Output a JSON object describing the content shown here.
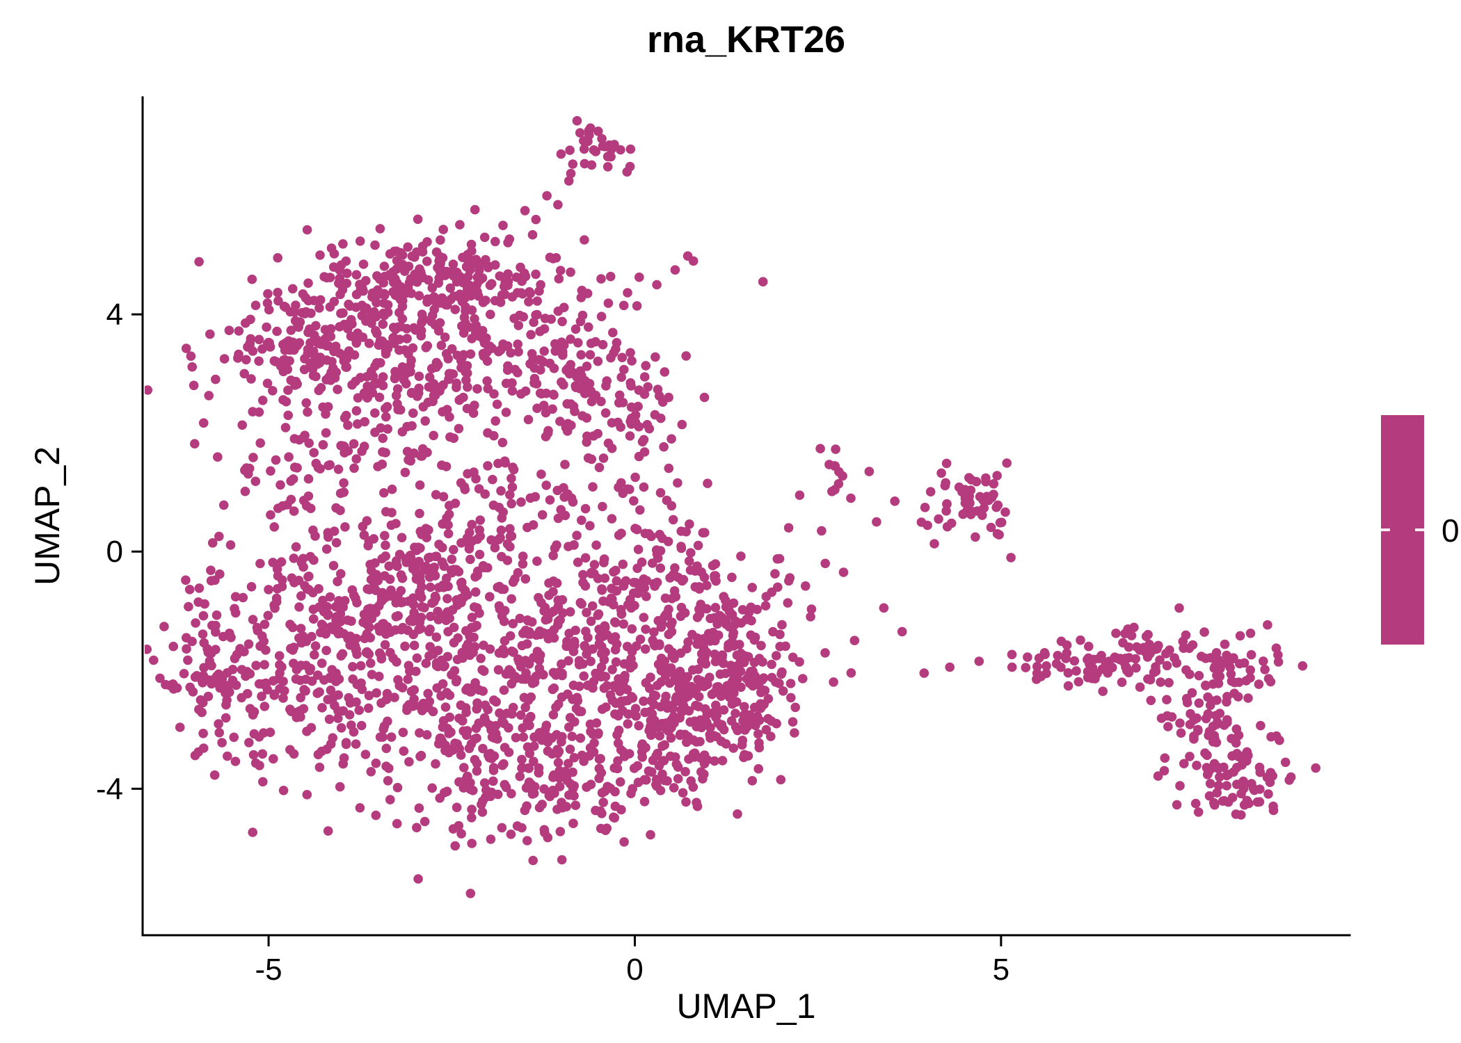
{
  "chart": {
    "title": "rna_KRT26",
    "xlabel": "UMAP_1",
    "ylabel": "UMAP_2"
  },
  "legend": {
    "label": "0"
  },
  "chart_data": {
    "type": "scatter",
    "title": "rna_KRT26",
    "xlabel": "UMAP_1",
    "ylabel": "UMAP_2",
    "xlim": [
      -6.72,
      9.76
    ],
    "ylim": [
      -6.47,
      7.66
    ],
    "x_ticks": [
      -5,
      0,
      5
    ],
    "y_ticks": [
      -4,
      0,
      4
    ],
    "grid": false,
    "legend_position": "right",
    "legend_value": "0",
    "point_color": "#B43B7D",
    "point_radius": 6.8,
    "axis_color": "#000000",
    "clusters": [
      {
        "name": "top-small",
        "cx": -0.5,
        "cy": 6.75,
        "sx": 0.22,
        "sy": 0.26,
        "n": 30
      },
      {
        "name": "upper-blob-core",
        "cx": -2.9,
        "cy": 4.5,
        "sx": 0.85,
        "sy": 0.45,
        "n": 250
      },
      {
        "name": "upper-blob-left",
        "cx": -4.35,
        "cy": 3.45,
        "sx": 0.75,
        "sy": 0.5,
        "n": 170
      },
      {
        "name": "upper-blob-lower",
        "cx": -2.7,
        "cy": 3.1,
        "sx": 1.0,
        "sy": 0.5,
        "n": 190
      },
      {
        "name": "upper-blob-right",
        "cx": -1.0,
        "cy": 3.4,
        "sx": 0.65,
        "sy": 0.75,
        "n": 110
      },
      {
        "name": "neck",
        "cx": -0.15,
        "cy": 2.2,
        "sx": 0.45,
        "sy": 0.5,
        "n": 55
      },
      {
        "name": "mid-band",
        "cx": -1.3,
        "cy": 0.9,
        "sx": 1.1,
        "sy": 0.45,
        "n": 65
      },
      {
        "name": "mid-left",
        "cx": -4.7,
        "cy": 1.4,
        "sx": 0.6,
        "sy": 0.5,
        "n": 50
      },
      {
        "name": "mid-center",
        "cx": -3.0,
        "cy": 1.6,
        "sx": 0.7,
        "sy": 0.4,
        "n": 50
      },
      {
        "name": "lower-upper-left",
        "cx": -3.0,
        "cy": -0.5,
        "sx": 1.0,
        "sy": 0.75,
        "n": 250
      },
      {
        "name": "lower-left",
        "cx": -4.6,
        "cy": -1.8,
        "sx": 0.85,
        "sy": 1.0,
        "n": 260
      },
      {
        "name": "far-left-edge",
        "cx": -5.75,
        "cy": -2.2,
        "sx": 0.35,
        "sy": 0.7,
        "n": 55
      },
      {
        "name": "lower-core",
        "cx": -2.4,
        "cy": -2.4,
        "sx": 1.05,
        "sy": 0.95,
        "n": 290
      },
      {
        "name": "bottom-lobe",
        "cx": -1.2,
        "cy": -3.9,
        "sx": 0.95,
        "sy": 0.6,
        "n": 190
      },
      {
        "name": "lower-mid",
        "cx": -0.5,
        "cy": -1.5,
        "sx": 0.8,
        "sy": 0.9,
        "n": 170
      },
      {
        "name": "lower-neck",
        "cx": 0.3,
        "cy": -0.3,
        "sx": 0.55,
        "sy": 0.5,
        "n": 80
      },
      {
        "name": "lower-right",
        "cx": 0.6,
        "cy": -2.3,
        "sx": 0.75,
        "sy": 0.8,
        "n": 180
      },
      {
        "name": "lower-right-bottom",
        "cx": 0.9,
        "cy": -3.1,
        "sx": 0.5,
        "sy": 0.4,
        "n": 70
      },
      {
        "name": "right-edge-clump",
        "cx": 1.4,
        "cy": -1.3,
        "sx": 0.45,
        "sy": 0.55,
        "n": 80
      },
      {
        "name": "right-lobe",
        "cx": 1.5,
        "cy": -2.2,
        "sx": 0.4,
        "sy": 0.45,
        "n": 70
      },
      {
        "name": "small-mid-right",
        "cx": 2.7,
        "cy": 1.45,
        "sx": 0.13,
        "sy": 0.18,
        "n": 10
      },
      {
        "name": "right-cluster",
        "cx": 4.6,
        "cy": 0.9,
        "sx": 0.3,
        "sy": 0.32,
        "n": 55
      },
      {
        "name": "arm-start",
        "cx": 5.45,
        "cy": -1.9,
        "sx": 0.12,
        "sy": 0.12,
        "n": 7
      },
      {
        "name": "arm-1",
        "cx": 6.1,
        "cy": -1.85,
        "sx": 0.4,
        "sy": 0.22,
        "n": 45
      },
      {
        "name": "arm-2",
        "cx": 7.1,
        "cy": -1.8,
        "sx": 0.45,
        "sy": 0.28,
        "n": 55
      },
      {
        "name": "arm-3",
        "cx": 8.2,
        "cy": -1.95,
        "sx": 0.35,
        "sy": 0.3,
        "n": 45
      },
      {
        "name": "arm-descent",
        "cx": 7.8,
        "cy": -2.9,
        "sx": 0.3,
        "sy": 0.35,
        "n": 55
      },
      {
        "name": "arm-tip",
        "cx": 8.3,
        "cy": -3.8,
        "sx": 0.4,
        "sy": 0.28,
        "n": 75
      }
    ],
    "extra_points": [
      [
        -2.05,
        5.3
      ],
      [
        -1.8,
        5.5
      ],
      [
        -1.5,
        5.75
      ],
      [
        -1.2,
        6.0
      ],
      [
        -0.9,
        6.25
      ],
      [
        -1.35,
        5.6
      ],
      [
        -1.05,
        5.85
      ],
      [
        0.3,
        4.5
      ],
      [
        0.55,
        4.75
      ],
      [
        0.8,
        4.9
      ],
      [
        1.75,
        4.55
      ],
      [
        -0.15,
        4.15
      ],
      [
        0.95,
        2.6
      ],
      [
        0.5,
        1.9
      ],
      [
        2.55,
        0.35
      ],
      [
        2.95,
        0.9
      ],
      [
        3.3,
        0.5
      ],
      [
        3.2,
        1.35
      ],
      [
        3.55,
        0.85
      ],
      [
        2.25,
        0.95
      ],
      [
        2.1,
        0.4
      ],
      [
        2.6,
        -0.2
      ],
      [
        2.85,
        -0.35
      ],
      [
        3.4,
        -0.95
      ],
      [
        2.4,
        -1.1
      ],
      [
        1.95,
        -0.6
      ],
      [
        3.0,
        -1.5
      ],
      [
        3.65,
        -1.35
      ],
      [
        3.95,
        -2.05
      ],
      [
        4.3,
        -1.95
      ],
      [
        4.7,
        -1.85
      ],
      [
        5.15,
        -1.95
      ],
      [
        4.95,
        0.3
      ],
      [
        -6.3,
        -1.6
      ],
      [
        -6.25,
        -2.3
      ]
    ]
  }
}
